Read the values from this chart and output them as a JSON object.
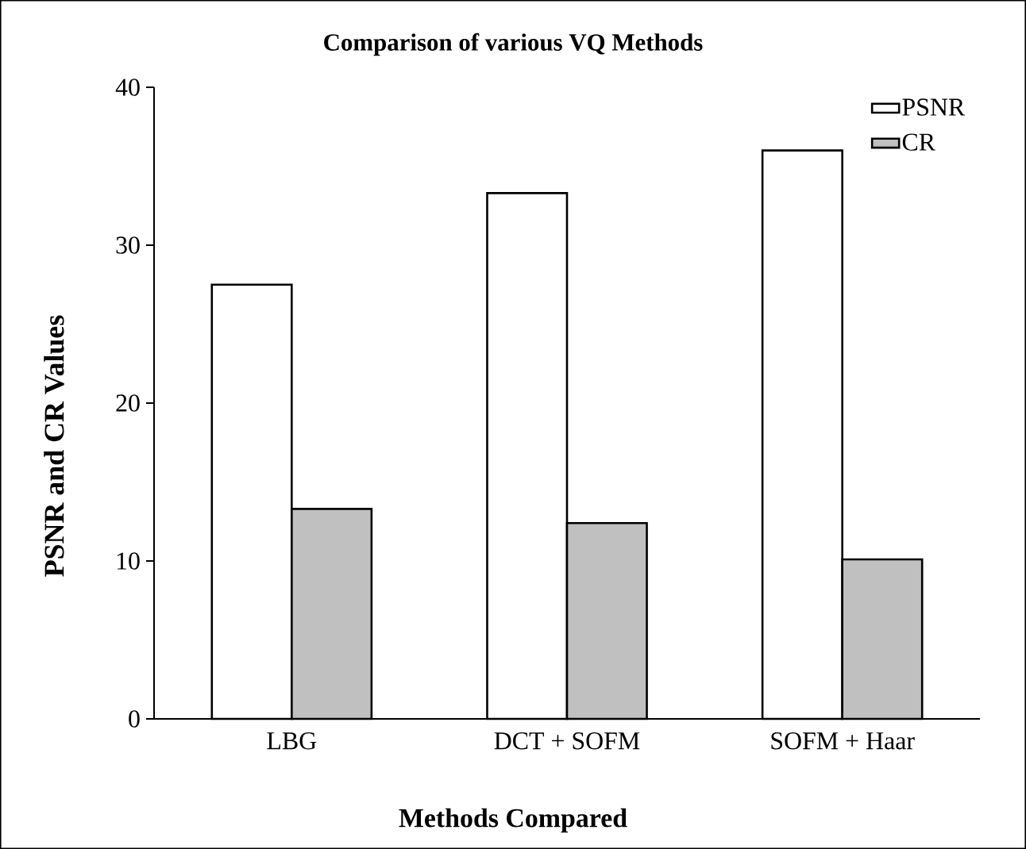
{
  "chart_data": {
    "type": "bar",
    "title": "Comparison of various VQ Methods",
    "xlabel": "Methods Compared",
    "ylabel": "PSNR and CR Values",
    "categories": [
      "LBG",
      "DCT + SOFM",
      "SOFM + Haar"
    ],
    "series": [
      {
        "name": "PSNR",
        "color": "#ffffff",
        "values": [
          27.5,
          33.3,
          36.0
        ]
      },
      {
        "name": "CR",
        "color": "#c0c0c0",
        "values": [
          13.3,
          12.4,
          10.1
        ]
      }
    ],
    "ylim": [
      0,
      40
    ],
    "yticks": [
      0,
      10,
      20,
      30,
      40
    ],
    "grid": false,
    "legend": "top right"
  }
}
